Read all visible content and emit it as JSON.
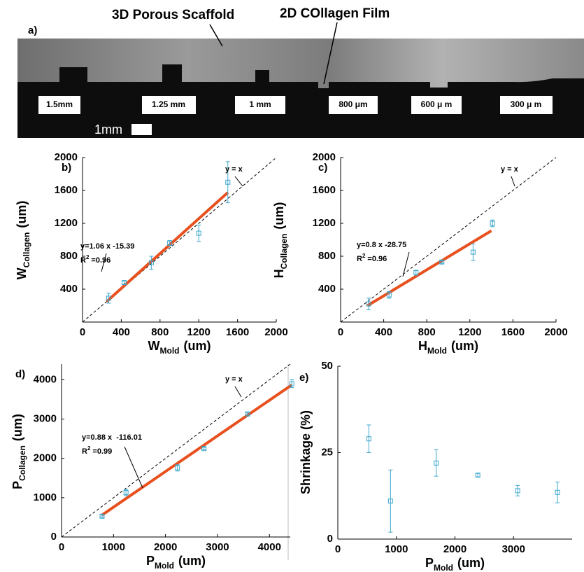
{
  "image_panel": {
    "label": "a)",
    "annotations": [
      "3D Porous Scaffold",
      "2D COllagen Film"
    ],
    "sample_labels": [
      "1.5mm",
      "1.25 mm",
      "1 mm",
      "800 μm",
      "600 μ m",
      "300 μ m"
    ],
    "scale_bar_label": "1mm"
  },
  "chart_data": [
    {
      "type": "scatter",
      "panel_label": "b)",
      "xlabel": [
        "W",
        "Mold",
        "(um)"
      ],
      "ylabel": [
        "W",
        "Collagen",
        "(um)"
      ],
      "xlim": [
        0,
        2000
      ],
      "ylim": [
        0,
        2000
      ],
      "xticks": [
        0,
        400,
        800,
        1200,
        1600,
        2000
      ],
      "yticks": [
        400,
        800,
        1200,
        1600,
        2000
      ],
      "x": [
        270,
        430,
        710,
        900,
        1200,
        1500
      ],
      "series": [
        {
          "color": "#3ca7cc",
          "values": [
            290,
            480,
            720,
            960,
            1080,
            1700
          ],
          "errors": [
            60,
            20,
            80,
            30,
            100,
            250
          ]
        }
      ],
      "fit_line": {
        "color": "#e8501e",
        "x": [
          250,
          1500
        ],
        "y": [
          250,
          1575
        ]
      },
      "reference_line": {
        "x": [
          0,
          2000
        ],
        "y": [
          0,
          2000
        ]
      },
      "equation": "y=1.06 x -15.39",
      "r2": [
        "R",
        "2",
        "=0.96"
      ],
      "reference_label": "y = x"
    },
    {
      "type": "scatter",
      "panel_label": "c)",
      "xlabel": [
        "H",
        "Mold",
        "(um)"
      ],
      "ylabel": [
        "H",
        "Collagen",
        "(um)"
      ],
      "xlim": [
        0,
        2000
      ],
      "ylim": [
        0,
        2000
      ],
      "xticks": [
        0,
        400,
        800,
        1200,
        1600,
        2000
      ],
      "yticks": [
        400,
        800,
        1200,
        1600,
        2000
      ],
      "x": [
        260,
        450,
        700,
        940,
        1230,
        1410
      ],
      "series": [
        {
          "color": "#3ca7cc",
          "values": [
            220,
            330,
            600,
            730,
            850,
            1200
          ],
          "errors": [
            70,
            40,
            30,
            15,
            100,
            40
          ]
        }
      ],
      "fit_line": {
        "color": "#e8501e",
        "x": [
          250,
          1400
        ],
        "y": [
          200,
          1110
        ]
      },
      "reference_line": {
        "x": [
          0,
          2000
        ],
        "y": [
          0,
          2000
        ]
      },
      "equation": "y=0.8 x -28.75",
      "r2": [
        "R",
        "2",
        "=0.96"
      ],
      "reference_label": "y = x"
    },
    {
      "type": "scatter",
      "panel_label": "d)",
      "xlabel": [
        "P",
        "Mold",
        "(um)"
      ],
      "ylabel": [
        "P",
        "Collagen",
        "(um)"
      ],
      "xlim": [
        0,
        4400
      ],
      "ylim": [
        0,
        4400
      ],
      "xticks": [
        0,
        1000,
        2000,
        3000,
        4000
      ],
      "yticks": [
        0,
        1000,
        2000,
        3000,
        4000
      ],
      "x": [
        780,
        1240,
        2230,
        2740,
        3580,
        4430
      ],
      "series": [
        {
          "color": "#3ca7cc",
          "values": [
            530,
            1130,
            1760,
            2250,
            3130,
            3900
          ],
          "errors": [
            30,
            80,
            80,
            30,
            30,
            100
          ]
        }
      ],
      "fit_line": {
        "color": "#e8501e",
        "x": [
          780,
          4430
        ],
        "y": [
          560,
          3870
        ]
      },
      "reference_line": {
        "x": [
          0,
          4400
        ],
        "y": [
          0,
          4400
        ]
      },
      "equation": "y=0.88 x  -116.01",
      "r2": [
        "R",
        "2",
        "=0.99"
      ],
      "reference_label": "y = x"
    },
    {
      "type": "scatter",
      "panel_label": "e)",
      "xlabel": [
        "P",
        "Mold",
        "(um)"
      ],
      "ylabel": "Shrinkage (%)",
      "xlim": [
        0,
        4000
      ],
      "ylim": [
        0,
        50
      ],
      "xticks": [
        0,
        1000,
        2000,
        3000
      ],
      "yticks": [
        0,
        25,
        50
      ],
      "x": [
        530,
        900,
        1680,
        2390,
        3070,
        3750
      ],
      "series": [
        {
          "color": "#3ca7cc",
          "values": [
            29,
            11,
            22,
            18.5,
            14,
            13.5
          ],
          "errors": [
            4,
            9,
            3.8,
            0.5,
            1.5,
            3
          ]
        }
      ]
    }
  ]
}
